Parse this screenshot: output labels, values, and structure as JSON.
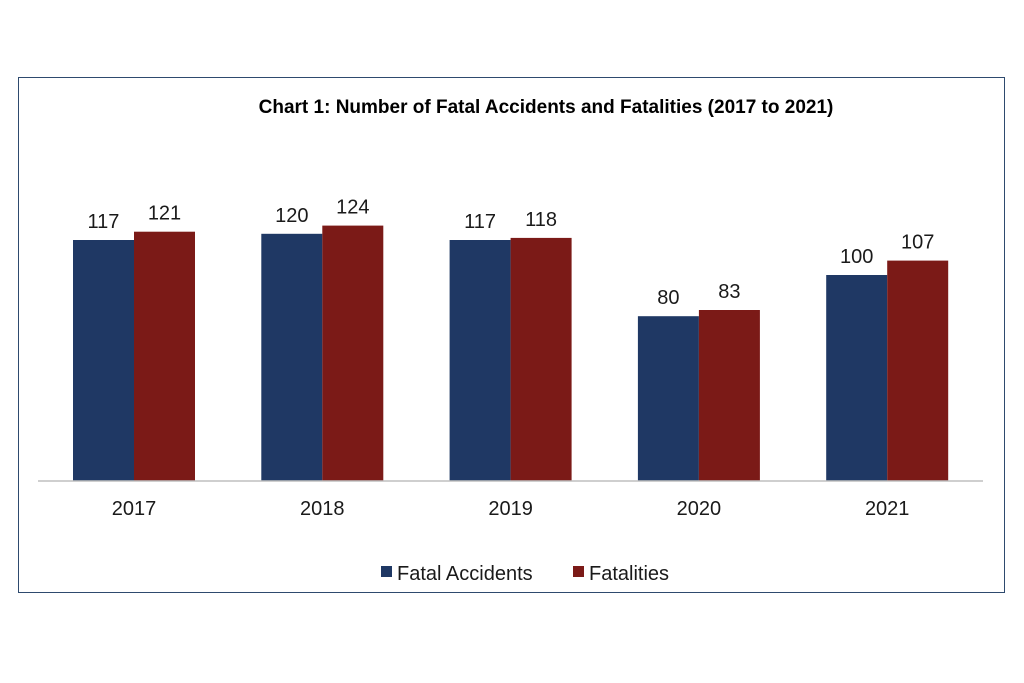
{
  "chart_data": {
    "type": "bar",
    "title": "Chart 1: Number of Fatal Accidents and Fatalities (2017 to 2021)",
    "categories": [
      "2017",
      "2018",
      "2019",
      "2020",
      "2021"
    ],
    "series": [
      {
        "name": "Fatal Accidents",
        "values": [
          117,
          120,
          117,
          80,
          100
        ],
        "color": "#1f3864"
      },
      {
        "name": "Fatalities",
        "values": [
          121,
          124,
          118,
          83,
          107
        ],
        "color": "#7b1a17"
      }
    ],
    "ylim": [
      0,
      124
    ],
    "grid": false,
    "legend_position": "bottom"
  }
}
